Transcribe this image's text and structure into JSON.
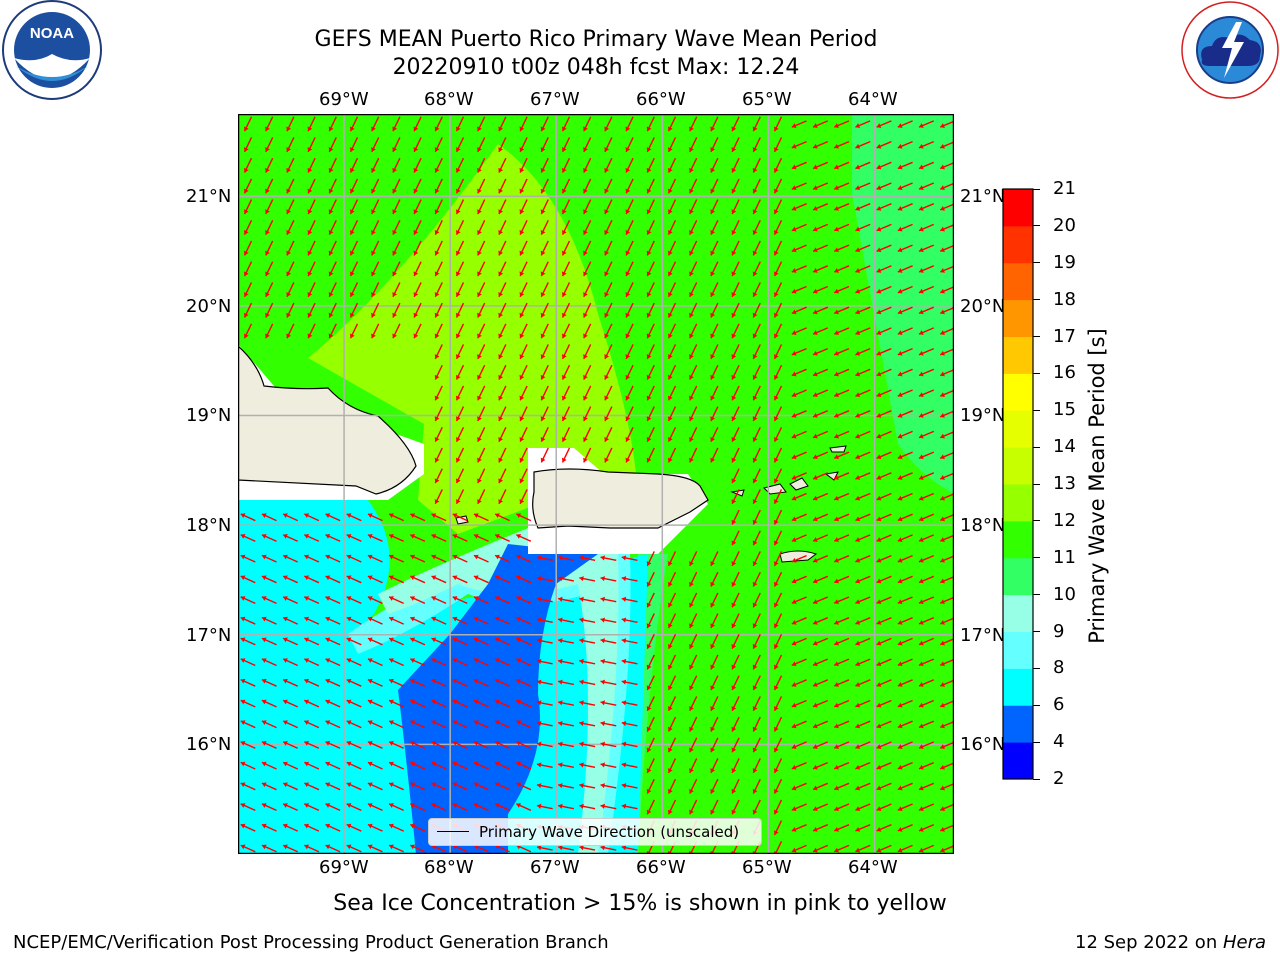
{
  "header": {
    "title_line1": "GEFS MEAN Puerto Rico Primary Wave Mean Period",
    "title_line2": "20220910 t00z 048h fcst   Max: 12.24"
  },
  "logos": {
    "left_logo_text": "NOAA",
    "left_logo_ring_text": "NATIONAL OCEANIC AND ATMOSPHERIC ADMINISTRATION · U.S. DEPARTMENT OF COMMERCE",
    "right_logo_ring_text": "NATIONAL WEATHER SERVICE"
  },
  "map": {
    "lon_labels": [
      "69°W",
      "68°W",
      "67°W",
      "66°W",
      "65°W",
      "64°W"
    ],
    "lat_labels": [
      "21°N",
      "20°N",
      "19°N",
      "18°N",
      "17°N",
      "16°N"
    ],
    "lon_range": [
      -70.0,
      -63.25
    ],
    "lat_range": [
      15.0,
      21.75
    ],
    "grid": true,
    "vector_color": "#ff0000",
    "wave_direction_note": "waves from the northeast north of the islands; from the east-southeast south of Hispaniola"
  },
  "legend": {
    "label": "Primary Wave Direction (unscaled)",
    "placement": "bottom-center"
  },
  "colorbar": {
    "label": "Primary Wave Mean Period [s]",
    "ticks": [
      "2",
      "4",
      "6",
      "8",
      "9",
      "10",
      "11",
      "12",
      "13",
      "14",
      "15",
      "16",
      "17",
      "18",
      "19",
      "20",
      "21"
    ],
    "colors": [
      "#0000ff",
      "#0064ff",
      "#00ffff",
      "#64ffff",
      "#96ffe6",
      "#32ff64",
      "#32ff00",
      "#96ff00",
      "#c8ff00",
      "#e6ff00",
      "#ffff00",
      "#ffc800",
      "#ff9600",
      "#ff6400",
      "#ff3200",
      "#ff0000"
    ]
  },
  "colors": {
    "land": "#efedde",
    "no_data": "#ffffff",
    "period_4_6": "#0064ff",
    "period_6_8": "#00ffff",
    "period_8_9": "#64ffff",
    "period_9_10": "#96ffe6",
    "period_10_11": "#32ff64",
    "period_11_12": "#32ff00",
    "period_12_13": "#96ff00"
  },
  "note": "Sea Ice Concentration > 15% is shown in pink to yellow",
  "footer": {
    "left": "NCEP/EMC/Verification Post Processing Product Generation Branch",
    "date": "12 Sep 2022 on ",
    "machine": "Hera"
  }
}
